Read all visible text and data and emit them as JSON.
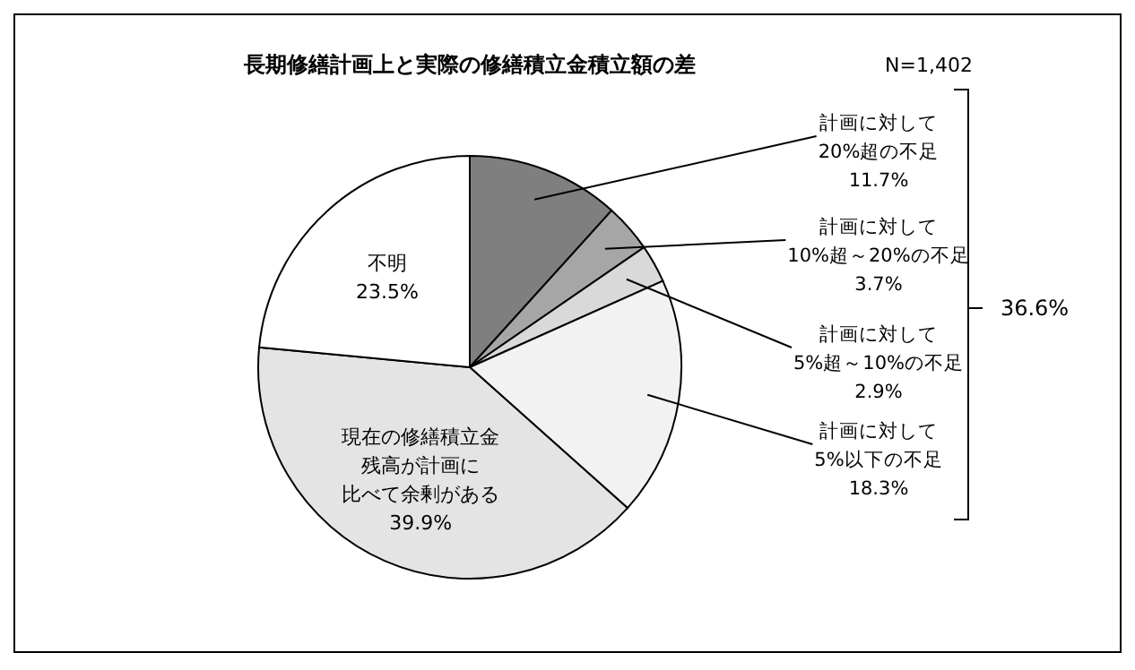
{
  "chart_data": {
    "type": "pie",
    "title": "長期修繕計画上と実際の修繕積立金積立額の差",
    "annotations": [
      "N=1,402",
      "36.6%"
    ],
    "categories": [
      "計画に対して20%超の不足",
      "計画に対して10%超～20%の不足",
      "計画に対して5%超～10%の不足",
      "計画に対して5%以下の不足",
      "現在の修繕積立金残高が計画に比べて余剰がある",
      "不明"
    ],
    "values": [
      11.7,
      3.7,
      2.9,
      18.3,
      39.9,
      23.5
    ],
    "value_labels": [
      "11.7%",
      "3.7%",
      "2.9%",
      "18.3%",
      "39.9%",
      "23.5%"
    ],
    "colors": [
      "#7f7f7f",
      "#a6a6a6",
      "#d9d9d9",
      "#f2f2f2",
      "#e4e4e4",
      "#ffffff"
    ]
  }
}
